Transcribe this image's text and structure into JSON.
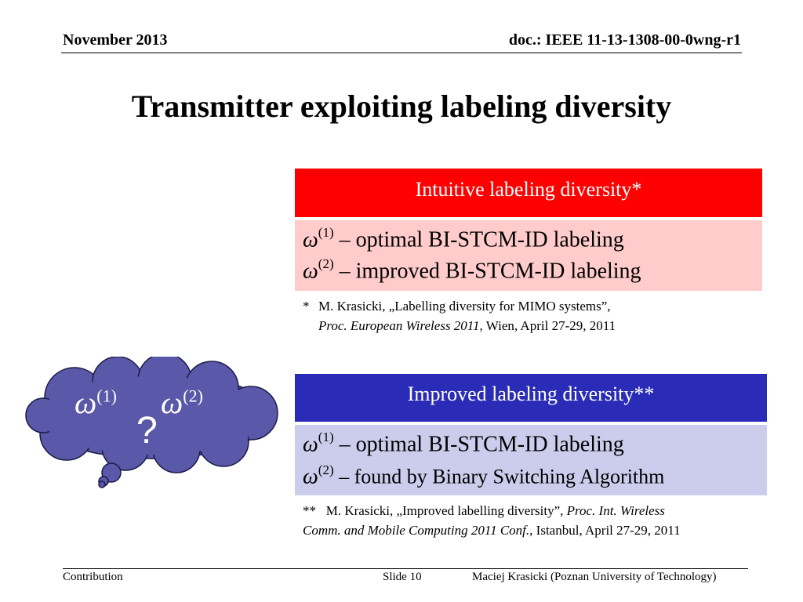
{
  "header": {
    "date": "November 2013",
    "doc": "doc.: IEEE 11-13-1308-00-0wng-r1"
  },
  "title": "Transmitter exploiting labeling diversity",
  "intuitive": {
    "heading": "Intuitive labeling diversity*",
    "symbol": "ω",
    "item1_sup": "(1)",
    "item1_text": " – optimal BI-STCM-ID labeling",
    "item2_sup": "(2)",
    "item2_text": " – improved BI-STCM-ID labeling",
    "note_marker": "*",
    "note_line1": "M. Krasicki, „Labelling diversity for MIMO systems”,",
    "note_line2_italic": "Proc. European Wireless 2011",
    "note_line2_rest": ", Wien, April 27-29, 2011"
  },
  "improved": {
    "heading": "Improved labeling diversity**",
    "symbol": "ω",
    "item1_sup": "(1)",
    "item1_text": " – optimal BI-STCM-ID labeling",
    "item2_sup": "(2)",
    "item2_text": " – found by Binary Switching Algorithm",
    "note_marker": "**",
    "note_line1_plain": "M. Krasicki, „Improved labelling diversity”, ",
    "note_line1_italic": "Proc. Int. Wireless",
    "note_line2_italic": "Comm. and Mobile Computing 2011 Conf.",
    "note_line2_rest": ",  Istanbul, April 27-29, 2011"
  },
  "cloud": {
    "symbol": "ω",
    "sup1": "(1)",
    "sup2": "(2)",
    "question": "?",
    "fill_color": "#5a58a8"
  },
  "footer": {
    "left": "Contribution",
    "center": "Slide 10",
    "right": "Maciej Krasicki (Poznan University of Technology)"
  },
  "colors": {
    "red_head": "#ff0000",
    "red_body": "#ffcbcb",
    "blue_head": "#2a2cb7",
    "blue_body": "#ccccec"
  }
}
